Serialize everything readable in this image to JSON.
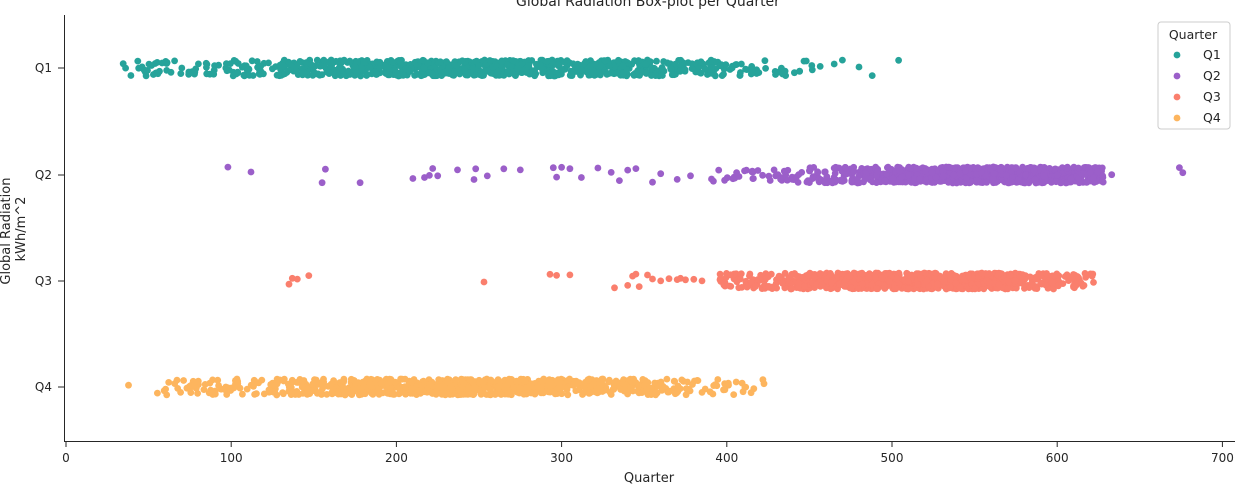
{
  "chart_data": {
    "type": "scatter",
    "title": "Global Radiation Box-plot per Quarter",
    "xlabel": "Quarter",
    "ylabel": [
      "Global Radiation",
      "kWh/m^2"
    ],
    "xlim": [
      -1,
      711
    ],
    "x_ticks": [
      0,
      100,
      200,
      300,
      400,
      500,
      600,
      700
    ],
    "categories": [
      "Q1",
      "Q2",
      "Q3",
      "Q4"
    ],
    "legend": {
      "title": "Quarter",
      "position": "top-right"
    },
    "grid": false,
    "series": [
      {
        "name": "Q1",
        "color": "#26a39a",
        "dist": {
          "main_range": [
            33,
            460
          ],
          "center": 250,
          "spread": 95,
          "outliers": [
            465,
            470,
            480,
            488,
            504
          ]
        }
      },
      {
        "name": "Q2",
        "color": "#9b5fc9",
        "dist": {
          "main_range": [
            390,
            628
          ],
          "center": 560,
          "spread": 55,
          "outliers": [
            98,
            112,
            155,
            157,
            178,
            210,
            217,
            220,
            222,
            225,
            237,
            247,
            248,
            255,
            265,
            275,
            295,
            297,
            300,
            305,
            312,
            322,
            330,
            335,
            340,
            345,
            355,
            360,
            370,
            378,
            633,
            674,
            676
          ]
        }
      },
      {
        "name": "Q3",
        "color": "#fa7f6d",
        "dist": {
          "main_range": [
            395,
            622
          ],
          "center": 510,
          "spread": 60,
          "outliers": [
            135,
            137,
            140,
            147,
            253,
            293,
            297,
            305,
            332,
            340,
            343,
            345,
            347,
            352,
            355,
            360,
            365,
            370,
            372,
            375,
            380,
            385
          ]
        }
      },
      {
        "name": "Q4",
        "color": "#fdb55e",
        "dist": {
          "main_range": [
            36,
            425
          ],
          "center": 235,
          "spread": 80,
          "outliers": []
        }
      }
    ]
  }
}
